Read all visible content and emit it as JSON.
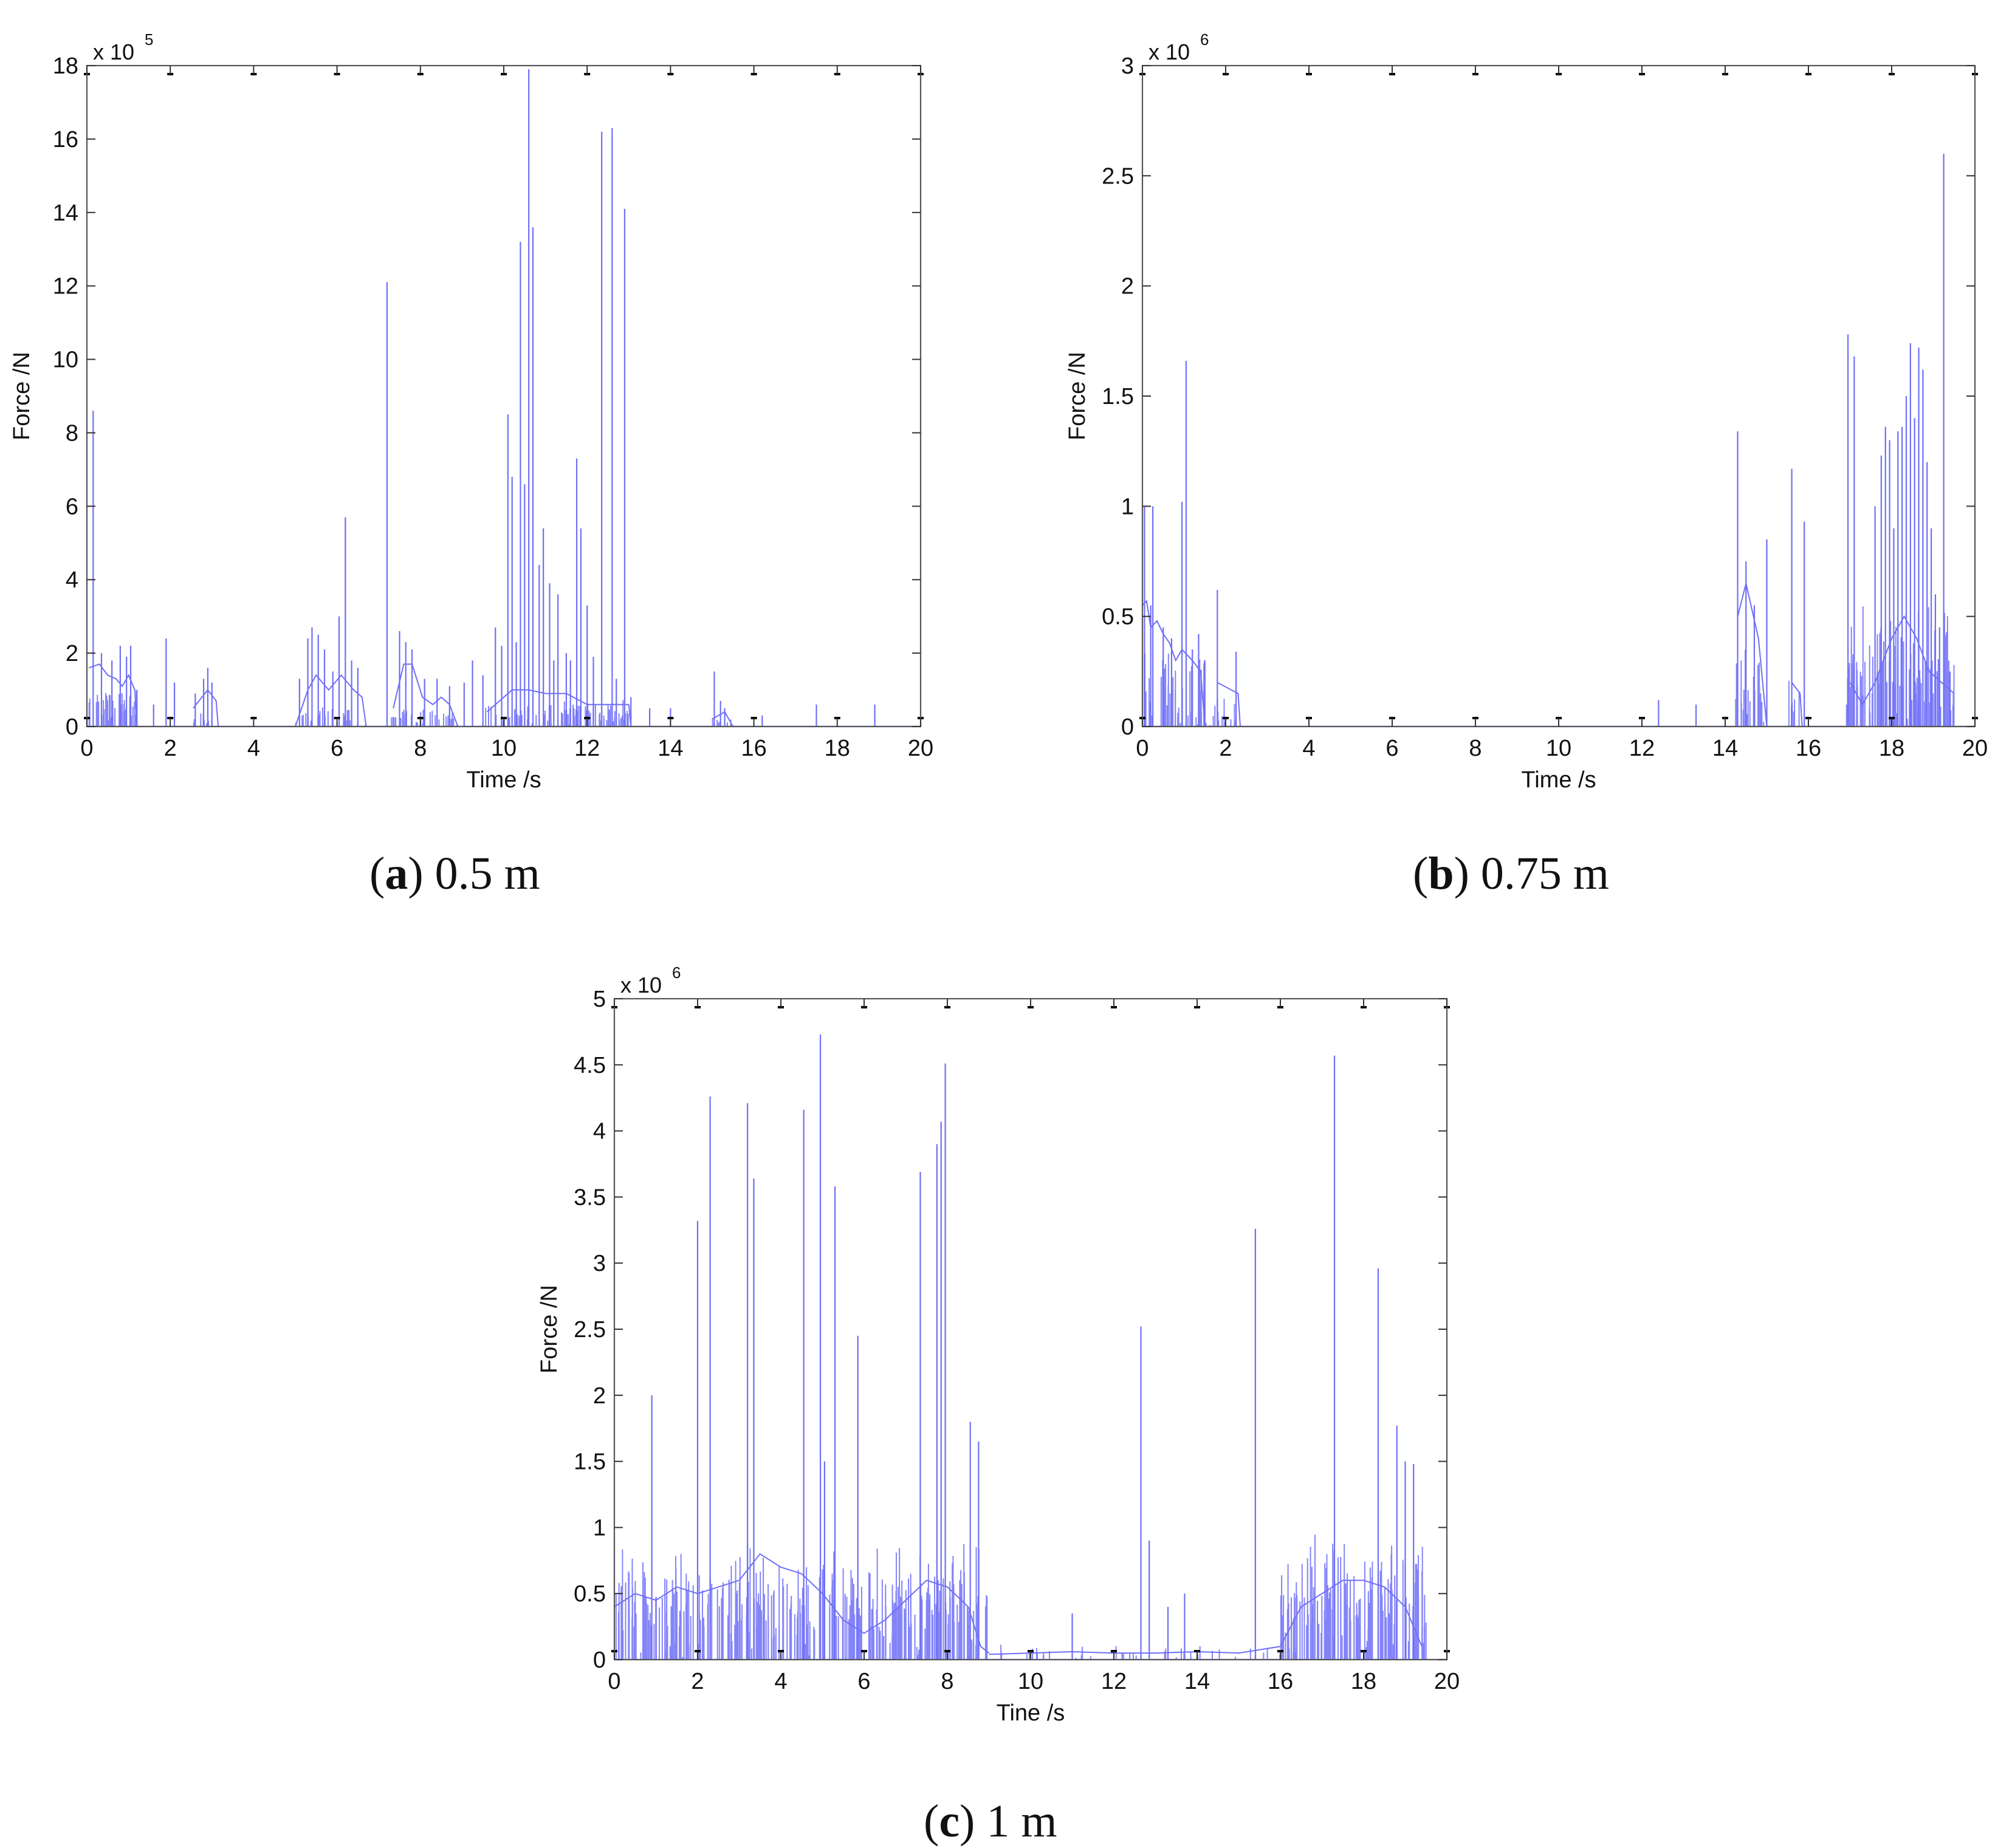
{
  "chart_data": [
    {
      "type": "line",
      "caption_tag": "a",
      "caption_text": "0.5 m",
      "exponent_label": "x 10",
      "exponent_power": "5",
      "xlabel": "Time /s",
      "ylabel": "Force /N",
      "xlim": [
        0,
        20
      ],
      "ylim": [
        0,
        18
      ],
      "xticks": [
        "0",
        "2",
        "4",
        "6",
        "8",
        "10",
        "12",
        "14",
        "16",
        "18",
        "20"
      ],
      "yticks": [
        "0",
        "2",
        "4",
        "6",
        "8",
        "10",
        "12",
        "14",
        "16",
        "18"
      ],
      "grid": false,
      "series_color": "#6f6ff7",
      "spikes": [
        [
          0.15,
          8.6
        ],
        [
          0.35,
          2.0
        ],
        [
          0.6,
          1.8
        ],
        [
          0.8,
          2.2
        ],
        [
          0.95,
          1.9
        ],
        [
          1.05,
          2.2
        ],
        [
          1.2,
          1.0
        ],
        [
          1.6,
          0.6
        ],
        [
          1.9,
          2.4
        ],
        [
          2.1,
          1.2
        ],
        [
          2.6,
          0.9
        ],
        [
          2.8,
          1.3
        ],
        [
          2.9,
          1.6
        ],
        [
          3.0,
          1.2
        ],
        [
          5.1,
          1.3
        ],
        [
          5.3,
          2.4
        ],
        [
          5.4,
          2.7
        ],
        [
          5.55,
          2.5
        ],
        [
          5.7,
          2.1
        ],
        [
          5.9,
          1.5
        ],
        [
          6.05,
          3.0
        ],
        [
          6.2,
          5.7
        ],
        [
          6.35,
          1.8
        ],
        [
          6.5,
          1.6
        ],
        [
          7.2,
          12.1
        ],
        [
          7.5,
          2.6
        ],
        [
          7.65,
          2.3
        ],
        [
          7.8,
          2.1
        ],
        [
          8.1,
          1.3
        ],
        [
          8.4,
          1.3
        ],
        [
          8.7,
          1.1
        ],
        [
          9.05,
          1.2
        ],
        [
          9.25,
          1.8
        ],
        [
          9.5,
          1.4
        ],
        [
          9.8,
          2.7
        ],
        [
          9.95,
          2.2
        ],
        [
          10.1,
          8.5
        ],
        [
          10.2,
          6.8
        ],
        [
          10.3,
          2.3
        ],
        [
          10.4,
          13.2
        ],
        [
          10.5,
          6.6
        ],
        [
          10.6,
          17.9
        ],
        [
          10.7,
          13.6
        ],
        [
          10.85,
          4.4
        ],
        [
          10.95,
          5.4
        ],
        [
          11.1,
          3.9
        ],
        [
          11.2,
          1.8
        ],
        [
          11.3,
          3.6
        ],
        [
          11.5,
          2.0
        ],
        [
          11.6,
          1.8
        ],
        [
          11.75,
          7.3
        ],
        [
          11.85,
          5.4
        ],
        [
          12.0,
          3.3
        ],
        [
          12.15,
          1.9
        ],
        [
          12.35,
          16.2
        ],
        [
          12.6,
          16.3
        ],
        [
          12.7,
          1.3
        ],
        [
          12.9,
          14.1
        ],
        [
          13.05,
          0.8
        ],
        [
          13.5,
          0.5
        ],
        [
          14.0,
          0.5
        ],
        [
          15.05,
          1.5
        ],
        [
          15.2,
          0.7
        ],
        [
          15.3,
          0.5
        ],
        [
          16.2,
          0.3
        ],
        [
          17.5,
          0.6
        ],
        [
          18.9,
          0.6
        ]
      ],
      "segments": [
        [
          [
            0.05,
            1.6
          ],
          [
            0.3,
            1.7
          ],
          [
            0.5,
            1.4
          ],
          [
            0.7,
            1.3
          ],
          [
            0.85,
            1.1
          ],
          [
            1.0,
            1.4
          ],
          [
            1.15,
            1.0
          ],
          [
            1.2,
            0.0
          ]
        ],
        [
          [
            2.55,
            0.5
          ],
          [
            2.9,
            1.0
          ],
          [
            3.1,
            0.7
          ],
          [
            3.15,
            0.0
          ]
        ],
        [
          [
            5.0,
            0.0
          ],
          [
            5.3,
            1.0
          ],
          [
            5.5,
            1.4
          ],
          [
            5.8,
            1.0
          ],
          [
            6.1,
            1.4
          ],
          [
            6.4,
            1.0
          ],
          [
            6.6,
            0.8
          ],
          [
            6.7,
            0.0
          ]
        ],
        [
          [
            7.35,
            0.5
          ],
          [
            7.6,
            1.7
          ],
          [
            7.8,
            1.7
          ],
          [
            8.05,
            0.8
          ],
          [
            8.3,
            0.6
          ],
          [
            8.5,
            0.8
          ],
          [
            8.7,
            0.6
          ],
          [
            8.9,
            0.0
          ]
        ],
        [
          [
            9.6,
            0.4
          ],
          [
            10.2,
            1.0
          ],
          [
            10.6,
            1.0
          ],
          [
            11.0,
            0.9
          ],
          [
            11.5,
            0.9
          ],
          [
            12.0,
            0.6
          ],
          [
            12.5,
            0.6
          ],
          [
            13.0,
            0.6
          ],
          [
            13.05,
            0.0
          ]
        ],
        [
          [
            15.0,
            0.2
          ],
          [
            15.3,
            0.4
          ],
          [
            15.5,
            0.0
          ]
        ]
      ],
      "clusters": [
        [
          0.05,
          1.3,
          45,
          0.9,
          1.0
        ],
        [
          2.5,
          3.15,
          12,
          0.3,
          0.4
        ],
        [
          5.0,
          6.7,
          30,
          0.6,
          0.5
        ],
        [
          7.3,
          9.0,
          35,
          0.6,
          0.3
        ],
        [
          9.5,
          13.0,
          90,
          0.8,
          0.5
        ],
        [
          15.0,
          15.5,
          12,
          0.3,
          0.1
        ]
      ]
    },
    {
      "type": "line",
      "caption_tag": "b",
      "caption_text": "0.75 m",
      "exponent_label": "x 10",
      "exponent_power": "6",
      "xlabel": "Time /s",
      "ylabel": "Force /N",
      "xlim": [
        0,
        20
      ],
      "ylim": [
        0,
        3
      ],
      "xticks": [
        "0",
        "2",
        "4",
        "6",
        "8",
        "10",
        "12",
        "14",
        "16",
        "18",
        "20"
      ],
      "yticks": [
        "0",
        "0.5",
        "1",
        "1.5",
        "2",
        "2.5",
        "3"
      ],
      "grid": false,
      "series_color": "#6f6ff7",
      "spikes": [
        [
          0.05,
          1.0
        ],
        [
          0.2,
          0.55
        ],
        [
          0.25,
          1.0
        ],
        [
          0.5,
          0.45
        ],
        [
          0.7,
          0.4
        ],
        [
          0.95,
          1.02
        ],
        [
          1.05,
          1.66
        ],
        [
          1.2,
          0.35
        ],
        [
          1.35,
          0.42
        ],
        [
          1.5,
          0.3
        ],
        [
          1.8,
          0.62
        ],
        [
          2.25,
          0.34
        ],
        [
          12.4,
          0.12
        ],
        [
          13.3,
          0.1
        ],
        [
          14.3,
          1.34
        ],
        [
          14.5,
          0.75
        ],
        [
          14.7,
          0.55
        ],
        [
          15.0,
          0.85
        ],
        [
          15.6,
          1.17
        ],
        [
          15.9,
          0.93
        ],
        [
          16.95,
          1.78
        ],
        [
          17.1,
          1.68
        ],
        [
          17.6,
          1.0
        ],
        [
          17.75,
          1.23
        ],
        [
          17.85,
          1.36
        ],
        [
          17.95,
          1.3
        ],
        [
          18.05,
          0.9
        ],
        [
          18.15,
          1.34
        ],
        [
          18.25,
          1.36
        ],
        [
          18.35,
          1.5
        ],
        [
          18.45,
          1.74
        ],
        [
          18.55,
          1.4
        ],
        [
          18.65,
          1.72
        ],
        [
          18.75,
          1.62
        ],
        [
          18.85,
          1.2
        ],
        [
          18.95,
          0.9
        ],
        [
          19.05,
          0.6
        ],
        [
          19.15,
          0.45
        ],
        [
          19.25,
          2.6
        ],
        [
          19.4,
          0.25
        ]
      ],
      "segments": [
        [
          [
            0.0,
            0.55
          ],
          [
            0.1,
            0.57
          ],
          [
            0.2,
            0.45
          ],
          [
            0.35,
            0.48
          ],
          [
            0.5,
            0.42
          ],
          [
            0.65,
            0.38
          ],
          [
            0.8,
            0.3
          ],
          [
            0.95,
            0.35
          ],
          [
            1.2,
            0.3
          ],
          [
            1.4,
            0.25
          ],
          [
            1.5,
            0.0
          ]
        ],
        [
          [
            1.8,
            0.2
          ],
          [
            2.3,
            0.15
          ],
          [
            2.35,
            0.0
          ]
        ],
        [
          [
            14.3,
            0.5
          ],
          [
            14.5,
            0.65
          ],
          [
            14.8,
            0.4
          ],
          [
            15.0,
            0.0
          ]
        ],
        [
          [
            15.6,
            0.2
          ],
          [
            15.8,
            0.15
          ],
          [
            15.85,
            0.0
          ]
        ],
        [
          [
            17.0,
            0.2
          ],
          [
            17.3,
            0.1
          ],
          [
            17.6,
            0.2
          ],
          [
            18.0,
            0.4
          ],
          [
            18.3,
            0.5
          ],
          [
            18.6,
            0.4
          ],
          [
            18.9,
            0.25
          ],
          [
            19.2,
            0.2
          ],
          [
            19.5,
            0.15
          ]
        ]
      ],
      "clusters": [
        [
          0.0,
          1.55,
          45,
          0.25,
          0.35
        ],
        [
          1.6,
          2.35,
          14,
          0.15,
          0.1
        ],
        [
          14.2,
          15.0,
          22,
          0.35,
          0.3
        ],
        [
          15.5,
          15.9,
          8,
          0.3,
          0.1
        ],
        [
          16.9,
          19.5,
          120,
          0.55,
          0.3
        ]
      ]
    },
    {
      "type": "line",
      "caption_tag": "c",
      "caption_text": "1 m",
      "exponent_label": "x 10",
      "exponent_power": "6",
      "xlabel": "Tine /s",
      "ylabel": "Force /N",
      "xlim": [
        0,
        20
      ],
      "ylim": [
        0,
        5
      ],
      "xticks": [
        "0",
        "2",
        "4",
        "6",
        "8",
        "10",
        "12",
        "14",
        "16",
        "18",
        "20"
      ],
      "yticks": [
        "0",
        "0.5",
        "1",
        "1.5",
        "2",
        "2.5",
        "3",
        "3.5",
        "4",
        "4.5",
        "5"
      ],
      "grid": false,
      "series_color": "#6f6ff7",
      "spikes": [
        [
          0.9,
          2.0
        ],
        [
          2.0,
          3.32
        ],
        [
          2.3,
          4.26
        ],
        [
          3.2,
          4.21
        ],
        [
          3.35,
          3.64
        ],
        [
          4.55,
          4.16
        ],
        [
          4.95,
          4.73
        ],
        [
          5.05,
          1.5
        ],
        [
          5.3,
          3.58
        ],
        [
          5.85,
          2.45
        ],
        [
          7.35,
          3.69
        ],
        [
          7.75,
          3.9
        ],
        [
          7.85,
          4.07
        ],
        [
          7.95,
          4.51
        ],
        [
          8.55,
          1.8
        ],
        [
          8.75,
          1.65
        ],
        [
          11.0,
          0.35
        ],
        [
          12.65,
          2.52
        ],
        [
          12.85,
          0.9
        ],
        [
          13.3,
          0.4
        ],
        [
          13.7,
          0.5
        ],
        [
          15.4,
          3.26
        ],
        [
          17.3,
          4.57
        ],
        [
          18.35,
          2.96
        ],
        [
          18.8,
          1.77
        ],
        [
          19.0,
          1.5
        ],
        [
          19.2,
          1.48
        ]
      ],
      "segments": [
        [
          [
            0.0,
            0.4
          ],
          [
            0.5,
            0.5
          ],
          [
            1.0,
            0.45
          ],
          [
            1.5,
            0.55
          ],
          [
            2.0,
            0.5
          ],
          [
            2.5,
            0.55
          ],
          [
            3.0,
            0.6
          ],
          [
            3.5,
            0.8
          ],
          [
            4.0,
            0.7
          ],
          [
            4.5,
            0.65
          ],
          [
            5.0,
            0.5
          ],
          [
            5.5,
            0.3
          ],
          [
            6.0,
            0.2
          ],
          [
            6.5,
            0.3
          ],
          [
            7.0,
            0.45
          ],
          [
            7.5,
            0.6
          ],
          [
            8.0,
            0.55
          ],
          [
            8.5,
            0.4
          ],
          [
            8.8,
            0.1
          ],
          [
            9.0,
            0.05
          ]
        ],
        [
          [
            9.0,
            0.04
          ],
          [
            10.0,
            0.05
          ],
          [
            11.0,
            0.06
          ],
          [
            12.0,
            0.05
          ],
          [
            13.0,
            0.05
          ],
          [
            14.0,
            0.06
          ],
          [
            15.0,
            0.05
          ],
          [
            16.0,
            0.1
          ]
        ],
        [
          [
            16.0,
            0.1
          ],
          [
            16.5,
            0.4
          ],
          [
            17.0,
            0.5
          ],
          [
            17.5,
            0.6
          ],
          [
            18.0,
            0.6
          ],
          [
            18.5,
            0.55
          ],
          [
            19.0,
            0.4
          ],
          [
            19.4,
            0.1
          ]
        ]
      ],
      "clusters": [
        [
          0.0,
          9.0,
          340,
          0.95,
          0.5
        ],
        [
          9.0,
          16.0,
          40,
          0.12,
          0.05
        ],
        [
          16.0,
          19.5,
          150,
          1.0,
          0.5
        ]
      ]
    }
  ]
}
